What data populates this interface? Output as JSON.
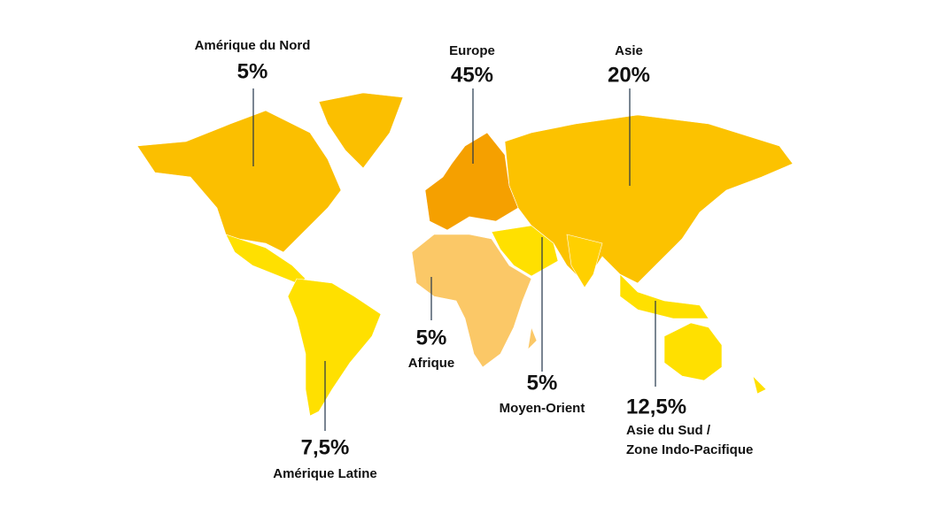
{
  "title": null,
  "regions": [
    {
      "name": "Amérique du Nord",
      "share": "5%"
    },
    {
      "name": "Europe",
      "share": "45%"
    },
    {
      "name": "Asie",
      "share": "20%"
    },
    {
      "name": "Afrique",
      "share": "5%"
    },
    {
      "name": "Moyen-Orient",
      "share": "5%"
    },
    {
      "lines": [
        "Asie du Sud /",
        "Zone Indo-Pacifique"
      ],
      "share": "12,5%"
    },
    {
      "name": "Amérique Latine",
      "share": "7,5%"
    }
  ]
}
